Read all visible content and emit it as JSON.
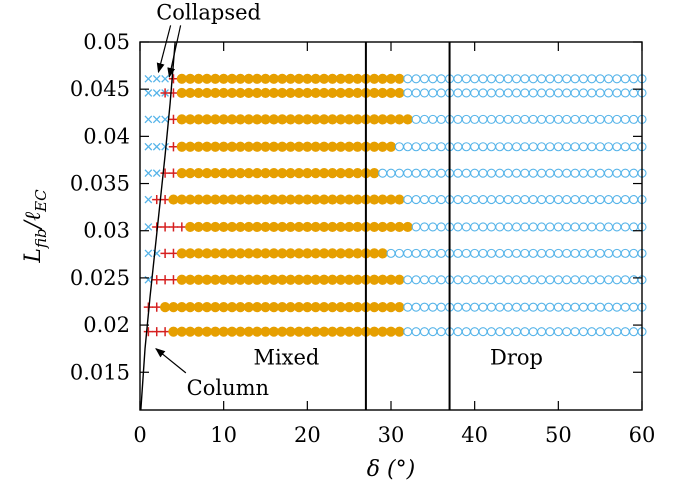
{
  "chart_data": {
    "type": "scatter",
    "title": "",
    "xlabel": "δ (°)",
    "ylabel": "L_fib/ℓ_EC",
    "xlim": [
      0,
      60
    ],
    "ylim": [
      0.011,
      0.05
    ],
    "x_ticks": [
      0,
      10,
      20,
      30,
      40,
      50,
      60
    ],
    "y_ticks": [
      0.015,
      0.02,
      0.025,
      0.03,
      0.035,
      0.04,
      0.045,
      0.05
    ],
    "x_tick_labels": [
      "0",
      "10",
      "20",
      "30",
      "40",
      "50",
      "60"
    ],
    "y_tick_labels": [
      "0.015",
      "0.02",
      "0.025",
      "0.03",
      "0.035",
      "0.04",
      "0.045",
      "0.05"
    ],
    "grid": false,
    "legend": "none",
    "x_step": 1,
    "vertical_lines": [
      27,
      37
    ],
    "region_labels": [
      {
        "text": "Mixed",
        "x": 17.5,
        "y": 0.0158
      },
      {
        "text": "Drop",
        "x": 45,
        "y": 0.0158
      }
    ],
    "annotations": [
      {
        "text": "Collapsed",
        "x": 8.2,
        "y": 0.0524,
        "points_to": [
          [
            2.2,
            0.0468
          ],
          [
            3.5,
            0.0463
          ]
        ]
      },
      {
        "text": "Column",
        "x": 10.5,
        "y": 0.0126,
        "points_to": [
          [
            1.9,
            0.0175
          ]
        ]
      }
    ],
    "boundary_curve": {
      "x": [
        0.1,
        0.6,
        1.2,
        1.8,
        2.4,
        3.0,
        3.6,
        4.2
      ],
      "y": [
        0.011,
        0.0175,
        0.023,
        0.028,
        0.033,
        0.038,
        0.0435,
        0.05
      ]
    },
    "series": [
      {
        "marker": "cross",
        "color": "#56b4e9",
        "rows": [
          {
            "y": 0.0461,
            "from": 1,
            "to": 3
          },
          {
            "y": 0.0446,
            "from": 1,
            "to": 3
          },
          {
            "y": 0.0418,
            "from": 1,
            "to": 3
          },
          {
            "y": 0.0389,
            "from": 1,
            "to": 3
          },
          {
            "y": 0.0361,
            "from": 1,
            "to": 2
          },
          {
            "y": 0.0333,
            "from": 1,
            "to": 1
          },
          {
            "y": 0.0304,
            "from": 1,
            "to": 1
          },
          {
            "y": 0.0276,
            "from": 1,
            "to": 2
          },
          {
            "y": 0.0248,
            "from": 1,
            "to": 1
          },
          {
            "y": 0.0219,
            "from": 1,
            "to": 0
          },
          {
            "y": 0.0193,
            "from": 1,
            "to": 0
          }
        ]
      },
      {
        "marker": "plus",
        "color": "#d62020",
        "rows": [
          {
            "y": 0.0461,
            "from": 4,
            "to": 4
          },
          {
            "y": 0.0446,
            "from": 3,
            "to": 4
          },
          {
            "y": 0.0418,
            "from": 4,
            "to": 4
          },
          {
            "y": 0.0389,
            "from": 4,
            "to": 4
          },
          {
            "y": 0.0361,
            "from": 3,
            "to": 4
          },
          {
            "y": 0.0333,
            "from": 2,
            "to": 3
          },
          {
            "y": 0.0304,
            "from": 2,
            "to": 5
          },
          {
            "y": 0.0276,
            "from": 3,
            "to": 4
          },
          {
            "y": 0.0248,
            "from": 2,
            "to": 4
          },
          {
            "y": 0.0219,
            "from": 1,
            "to": 2
          },
          {
            "y": 0.0193,
            "from": 1,
            "to": 4
          }
        ]
      },
      {
        "marker": "filled-circle",
        "color": "#e69f00",
        "rows": [
          {
            "y": 0.0461,
            "from": 5,
            "to": 31
          },
          {
            "y": 0.0446,
            "from": 5,
            "to": 31
          },
          {
            "y": 0.0418,
            "from": 5,
            "to": 32
          },
          {
            "y": 0.0389,
            "from": 5,
            "to": 30
          },
          {
            "y": 0.0361,
            "from": 5,
            "to": 28
          },
          {
            "y": 0.0333,
            "from": 4,
            "to": 31
          },
          {
            "y": 0.0304,
            "from": 6,
            "to": 32
          },
          {
            "y": 0.0276,
            "from": 5,
            "to": 29
          },
          {
            "y": 0.0248,
            "from": 5,
            "to": 31
          },
          {
            "y": 0.0219,
            "from": 3,
            "to": 31
          },
          {
            "y": 0.0193,
            "from": 4,
            "to": 31
          }
        ]
      },
      {
        "marker": "open-circle",
        "color": "#56b4e9",
        "rows": [
          {
            "y": 0.0461,
            "from": 32,
            "to": 60
          },
          {
            "y": 0.0446,
            "from": 32,
            "to": 60
          },
          {
            "y": 0.0418,
            "from": 33,
            "to": 60
          },
          {
            "y": 0.0389,
            "from": 31,
            "to": 60
          },
          {
            "y": 0.0361,
            "from": 29,
            "to": 60
          },
          {
            "y": 0.0333,
            "from": 32,
            "to": 60
          },
          {
            "y": 0.0304,
            "from": 33,
            "to": 60
          },
          {
            "y": 0.0276,
            "from": 30,
            "to": 60
          },
          {
            "y": 0.0248,
            "from": 32,
            "to": 60
          },
          {
            "y": 0.0219,
            "from": 32,
            "to": 60
          },
          {
            "y": 0.0193,
            "from": 32,
            "to": 60
          }
        ]
      }
    ]
  }
}
